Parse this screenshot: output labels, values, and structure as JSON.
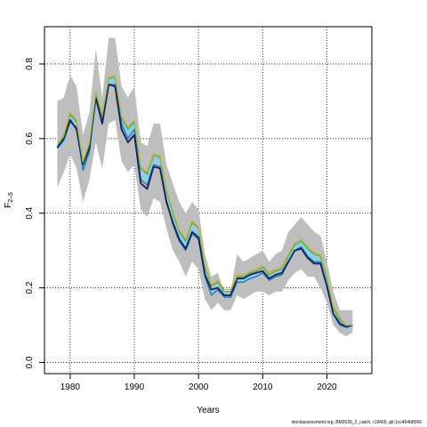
{
  "chart_data": {
    "type": "line",
    "xlabel": "Years",
    "ylabel": {
      "base": "F",
      "subscript": "2–5"
    },
    "xlim": [
      1976,
      2027
    ],
    "ylim": [
      -0.03,
      0.9
    ],
    "x_ticks": [
      1980,
      1990,
      2000,
      2010,
      2020
    ],
    "y_ticks": [
      0.0,
      0.2,
      0.4,
      0.6,
      0.8
    ],
    "y_tick_labels": [
      "0.0",
      "0.2",
      "0.4",
      "0.6",
      "0.8"
    ],
    "grid": true,
    "grid_style": "dotted",
    "x": [
      1978,
      1979,
      1980,
      1981,
      1982,
      1983,
      1984,
      1985,
      1986,
      1987,
      1988,
      1989,
      1990,
      1991,
      1992,
      1993,
      1994,
      1995,
      1996,
      1997,
      1998,
      1999,
      2000,
      2001,
      2002,
      2003,
      2004,
      2005,
      2006,
      2007,
      2008,
      2009,
      2010,
      2011,
      2012,
      2013,
      2014,
      2015,
      2016,
      2017,
      2018,
      2019,
      2020,
      2021,
      2022,
      2023,
      2024
    ],
    "band": {
      "color": "#bebebe",
      "upper": [
        0.7,
        0.71,
        0.77,
        0.74,
        0.61,
        0.67,
        0.84,
        0.71,
        0.87,
        0.87,
        0.74,
        0.71,
        0.74,
        0.59,
        0.58,
        0.64,
        0.64,
        0.53,
        0.48,
        0.43,
        0.4,
        0.43,
        0.41,
        0.29,
        0.23,
        0.24,
        0.19,
        0.19,
        0.29,
        0.27,
        0.28,
        0.29,
        0.3,
        0.27,
        0.29,
        0.3,
        0.35,
        0.37,
        0.39,
        0.37,
        0.35,
        0.34,
        0.27,
        0.19,
        0.14,
        0.14,
        0.14
      ],
      "lower": [
        0.47,
        0.51,
        0.56,
        0.52,
        0.43,
        0.49,
        0.59,
        0.52,
        0.64,
        0.65,
        0.54,
        0.51,
        0.53,
        0.41,
        0.39,
        0.44,
        0.43,
        0.36,
        0.3,
        0.27,
        0.23,
        0.27,
        0.25,
        0.17,
        0.14,
        0.16,
        0.14,
        0.14,
        0.18,
        0.17,
        0.18,
        0.19,
        0.19,
        0.18,
        0.19,
        0.19,
        0.22,
        0.24,
        0.25,
        0.23,
        0.23,
        0.2,
        0.16,
        0.1,
        0.08,
        0.07,
        0.08
      ]
    },
    "series": [
      {
        "color": "#7fd4f0",
        "width": 4,
        "values": [
          0.575,
          0.595,
          0.655,
          0.635,
          0.52,
          0.57,
          0.72,
          0.655,
          0.76,
          0.755,
          0.65,
          0.615,
          0.635,
          0.505,
          0.49,
          0.545,
          0.54,
          0.45,
          0.39,
          0.34,
          0.31,
          0.36,
          0.34,
          0.24,
          0.19,
          0.205,
          0.18,
          0.18,
          0.22,
          0.22,
          0.23,
          0.235,
          0.245,
          0.225,
          0.235,
          0.24,
          0.275,
          0.31,
          0.32,
          0.295,
          0.28,
          0.275,
          0.21,
          0.135,
          0.105,
          0.095,
          0.1
        ]
      },
      {
        "color": "#2c7bb6",
        "width": 1.5,
        "values": [
          0.575,
          0.595,
          0.645,
          0.63,
          0.515,
          0.565,
          0.715,
          0.645,
          0.745,
          0.745,
          0.64,
          0.6,
          0.625,
          0.49,
          0.475,
          0.53,
          0.525,
          0.435,
          0.37,
          0.325,
          0.3,
          0.345,
          0.33,
          0.23,
          0.18,
          0.195,
          0.175,
          0.175,
          0.215,
          0.215,
          0.225,
          0.23,
          0.24,
          0.22,
          0.23,
          0.235,
          0.27,
          0.3,
          0.31,
          0.285,
          0.27,
          0.27,
          0.205,
          0.13,
          0.1,
          0.095,
          0.1
        ]
      },
      {
        "color": "#1a1a5e",
        "width": 1.8,
        "values": [
          0.575,
          0.6,
          0.65,
          0.625,
          0.53,
          0.575,
          0.71,
          0.64,
          0.745,
          0.74,
          0.625,
          0.59,
          0.61,
          0.48,
          0.465,
          0.525,
          0.52,
          0.43,
          0.375,
          0.33,
          0.305,
          0.35,
          0.335,
          0.235,
          0.195,
          0.2,
          0.18,
          0.18,
          0.225,
          0.225,
          0.235,
          0.24,
          0.245,
          0.225,
          0.235,
          0.24,
          0.27,
          0.3,
          0.305,
          0.28,
          0.265,
          0.265,
          0.205,
          0.13,
          0.105,
          0.095,
          0.1
        ]
      },
      {
        "color": "#4aa84a",
        "width": 1.2,
        "values": [
          0.58,
          0.605,
          0.665,
          0.645,
          0.535,
          0.585,
          0.72,
          0.66,
          0.76,
          0.765,
          0.655,
          0.625,
          0.645,
          0.52,
          0.505,
          0.555,
          0.55,
          0.46,
          0.4,
          0.35,
          0.325,
          0.375,
          0.36,
          0.255,
          0.205,
          0.215,
          0.19,
          0.19,
          0.23,
          0.23,
          0.24,
          0.245,
          0.255,
          0.235,
          0.245,
          0.25,
          0.285,
          0.315,
          0.325,
          0.305,
          0.29,
          0.285,
          0.225,
          0.145,
          0.115,
          0.1,
          0.1
        ]
      },
      {
        "color": "#c8b422",
        "width": 1.2,
        "values": [
          0.585,
          0.61,
          0.67,
          0.65,
          0.54,
          0.59,
          0.725,
          0.665,
          0.765,
          0.77,
          0.66,
          0.63,
          0.65,
          0.525,
          0.51,
          0.56,
          0.555,
          0.465,
          0.405,
          0.355,
          0.33,
          0.38,
          0.365,
          0.26,
          0.21,
          0.22,
          0.195,
          0.195,
          0.235,
          0.235,
          0.245,
          0.25,
          0.26,
          0.24,
          0.25,
          0.255,
          0.29,
          0.32,
          0.33,
          0.31,
          0.295,
          0.29,
          0.23,
          0.15,
          0.12,
          0.1,
          0.1
        ]
      }
    ]
  },
  "footer": "stockassessment.org, BM2026_2_catch, r19465, git:1cc464b8066"
}
